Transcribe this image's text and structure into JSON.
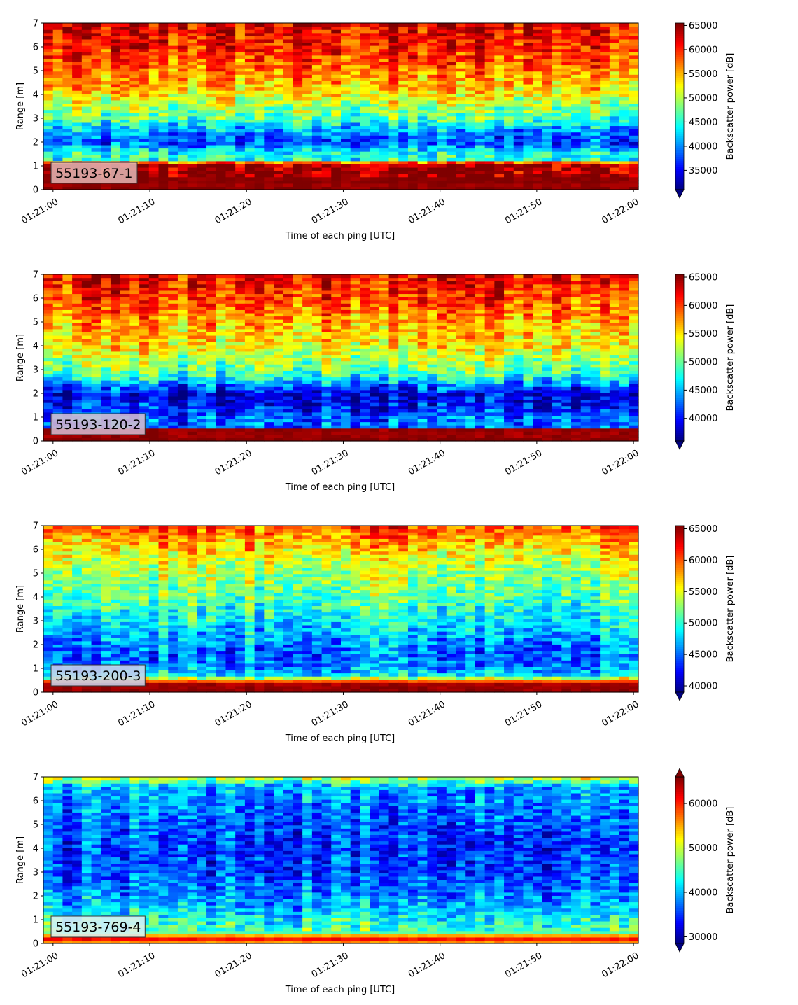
{
  "colormap": [
    "#00007f",
    "#0000ff",
    "#007fff",
    "#00ffff",
    "#7fff7f",
    "#ffff00",
    "#ff7f00",
    "#ff0000",
    "#7f0000"
  ],
  "chart_data": [
    {
      "type": "heatmap",
      "label": "55193-67-1",
      "label_box_color": "#e2b3b1",
      "xlabel": "Time of each ping [UTC]",
      "ylabel": "Range [m]",
      "colorbar_label": "Backscatter power [dB]",
      "x_ticks": [
        "01:21:00",
        "01:21:10",
        "01:21:20",
        "01:21:30",
        "01:21:40",
        "01:21:50",
        "01:22:00"
      ],
      "x_range": [
        "01:20:59",
        "01:22:00.5"
      ],
      "y_ticks": [
        "0",
        "1",
        "2",
        "3",
        "4",
        "5",
        "6",
        "7"
      ],
      "ylim": [
        0,
        7
      ],
      "clim": [
        31000,
        65500
      ],
      "colorbar_ticks": [
        "35000",
        "40000",
        "45000",
        "50000",
        "55000",
        "60000",
        "65000"
      ],
      "colorbar_extend": "min",
      "profile": [
        [
          0.0,
          65500
        ],
        [
          0.2,
          64500
        ],
        [
          0.3,
          65500
        ],
        [
          1.0,
          64000
        ],
        [
          1.15,
          57000
        ],
        [
          1.25,
          45000
        ],
        [
          1.6,
          44000
        ],
        [
          2.0,
          37500
        ],
        [
          2.3,
          39000
        ],
        [
          2.6,
          42000
        ],
        [
          3.0,
          46500
        ],
        [
          3.5,
          49000
        ],
        [
          4.0,
          53000
        ],
        [
          5.0,
          57000
        ],
        [
          6.0,
          60500
        ],
        [
          7.0,
          62000
        ]
      ]
    },
    {
      "type": "heatmap",
      "label": "55193-120-2",
      "label_box_color": "#d5b9cf",
      "xlabel": "Time of each ping [UTC]",
      "ylabel": "Range [m]",
      "colorbar_label": "Backscatter power [dB]",
      "x_ticks": [
        "01:21:00",
        "01:21:10",
        "01:21:20",
        "01:21:30",
        "01:21:40",
        "01:21:50",
        "01:22:00"
      ],
      "x_range": [
        "01:20:59",
        "01:22:00.5"
      ],
      "y_ticks": [
        "0",
        "1",
        "2",
        "3",
        "4",
        "5",
        "6",
        "7"
      ],
      "ylim": [
        0,
        7
      ],
      "clim": [
        36000,
        65500
      ],
      "colorbar_ticks": [
        "40000",
        "45000",
        "50000",
        "55000",
        "60000",
        "65000"
      ],
      "colorbar_extend": "min",
      "profile": [
        [
          0.0,
          65500
        ],
        [
          0.25,
          64500
        ],
        [
          0.5,
          65000
        ],
        [
          0.6,
          43000
        ],
        [
          1.0,
          42500
        ],
        [
          1.5,
          40000
        ],
        [
          1.9,
          38500
        ],
        [
          2.3,
          42000
        ],
        [
          2.7,
          48000
        ],
        [
          3.2,
          51000
        ],
        [
          4.0,
          54500
        ],
        [
          5.0,
          57000
        ],
        [
          6.0,
          60000
        ],
        [
          7.0,
          62000
        ]
      ]
    },
    {
      "type": "heatmap",
      "label": "55193-200-3",
      "label_box_color": "#c9d4ea",
      "xlabel": "Time of each ping [UTC]",
      "ylabel": "Range [m]",
      "colorbar_label": "Backscatter power [dB]",
      "x_ticks": [
        "01:21:00",
        "01:21:10",
        "01:21:20",
        "01:21:30",
        "01:21:40",
        "01:21:50",
        "01:22:00"
      ],
      "x_range": [
        "01:20:59",
        "01:22:00.5"
      ],
      "y_ticks": [
        "0",
        "1",
        "2",
        "3",
        "4",
        "5",
        "6",
        "7"
      ],
      "ylim": [
        0,
        7
      ],
      "clim": [
        39000,
        65500
      ],
      "colorbar_ticks": [
        "40000",
        "45000",
        "50000",
        "55000",
        "60000",
        "65000"
      ],
      "colorbar_extend": "min",
      "profile": [
        [
          0.0,
          65000
        ],
        [
          0.35,
          64500
        ],
        [
          0.5,
          59000
        ],
        [
          0.7,
          49000
        ],
        [
          1.0,
          46500
        ],
        [
          1.5,
          45000
        ],
        [
          2.0,
          46000
        ],
        [
          3.0,
          49000
        ],
        [
          4.0,
          51500
        ],
        [
          5.0,
          53500
        ],
        [
          6.0,
          56500
        ],
        [
          7.0,
          60500
        ]
      ]
    },
    {
      "type": "heatmap",
      "label": "55193-769-4",
      "label_box_color": "#dbf0f2",
      "xlabel": "Time of each ping [UTC]",
      "ylabel": "Range [m]",
      "colorbar_label": "Backscatter power [dB]",
      "x_ticks": [
        "01:21:00",
        "01:21:10",
        "01:21:20",
        "01:21:30",
        "01:21:40",
        "01:21:50",
        "01:22:00"
      ],
      "x_range": [
        "01:20:59",
        "01:22:00.5"
      ],
      "y_ticks": [
        "0",
        "1",
        "2",
        "3",
        "4",
        "5",
        "6",
        "7"
      ],
      "ylim": [
        0,
        7
      ],
      "clim": [
        28500,
        66000
      ],
      "colorbar_ticks": [
        "30000",
        "40000",
        "50000",
        "60000"
      ],
      "colorbar_extend": "both",
      "profile": [
        [
          0.0,
          40000
        ],
        [
          0.1,
          64000
        ],
        [
          0.3,
          58000
        ],
        [
          0.45,
          46000
        ],
        [
          1.0,
          43500
        ],
        [
          1.5,
          40500
        ],
        [
          2.0,
          38500
        ],
        [
          3.0,
          36000
        ],
        [
          4.0,
          35500
        ],
        [
          5.0,
          36500
        ],
        [
          6.0,
          38500
        ],
        [
          6.6,
          40000
        ],
        [
          7.0,
          52000
        ]
      ]
    }
  ]
}
